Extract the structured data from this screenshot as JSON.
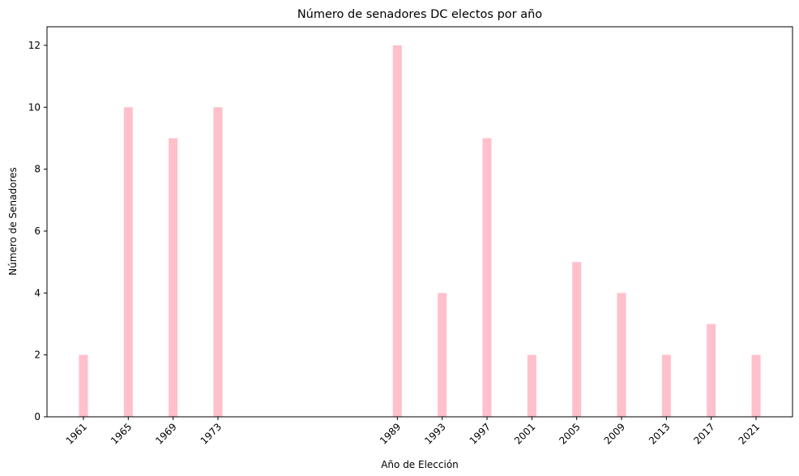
{
  "chart_data": {
    "type": "bar",
    "title": "Número de senadores DC electos por año",
    "xlabel": "Año de Elección",
    "ylabel": "Número de Senadores",
    "x": [
      1961,
      1965,
      1969,
      1973,
      1989,
      1993,
      1997,
      2001,
      2005,
      2009,
      2013,
      2017,
      2021
    ],
    "categories": [
      "1961",
      "1965",
      "1969",
      "1973",
      "1989",
      "1993",
      "1997",
      "2001",
      "2005",
      "2009",
      "2013",
      "2017",
      "2021"
    ],
    "values": [
      2,
      10,
      9,
      10,
      12,
      4,
      9,
      2,
      5,
      4,
      2,
      3,
      2
    ],
    "xlim": [
      1957.75,
      2024.25
    ],
    "ylim": [
      0,
      12.6
    ],
    "yticks": [
      "0",
      "2",
      "4",
      "6",
      "8",
      "10",
      "12"
    ],
    "bar_color": "#ffc0cb",
    "grid": false,
    "legend": "none"
  }
}
